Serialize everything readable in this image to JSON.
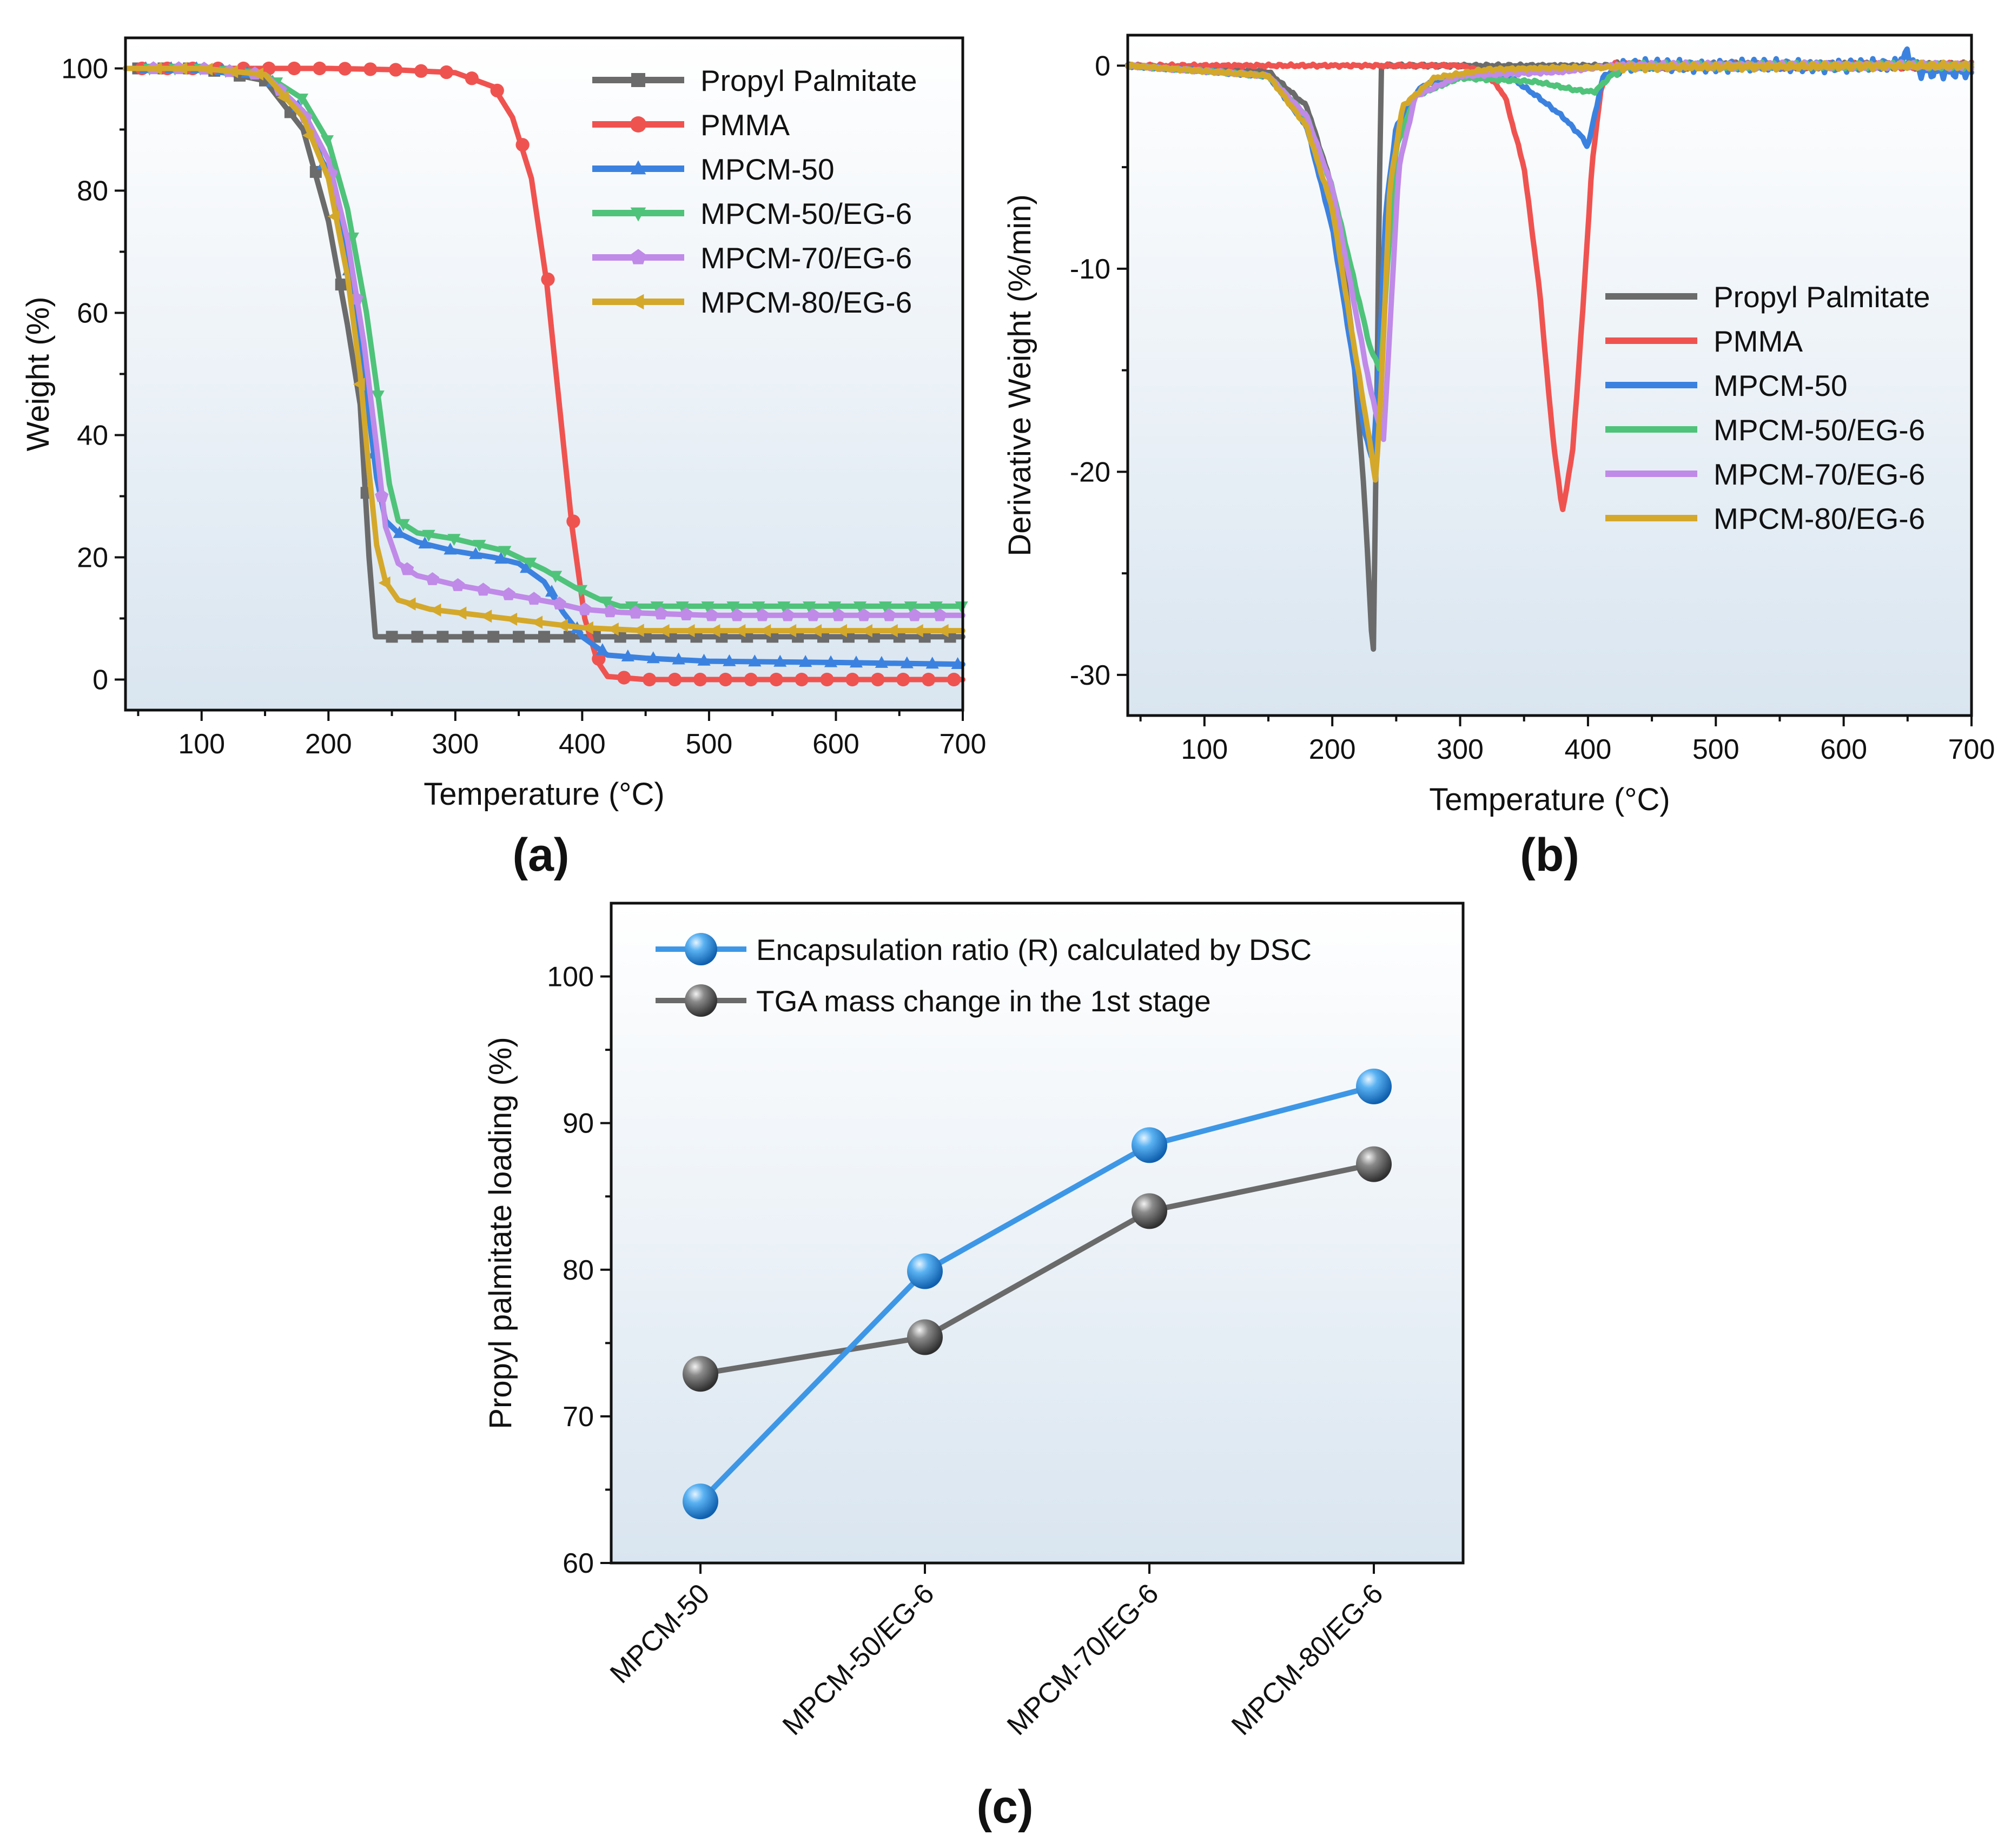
{
  "colors": {
    "propyl_palmitate": "#6b6b6b",
    "pmma": "#ef5350",
    "mpcm50": "#3b82e0",
    "mpcm50eg6": "#4fc37a",
    "mpcm70eg6": "#c08ae8",
    "mpcm80eg6": "#d4a82a",
    "dsc": "#3d97e6",
    "tga": "#6a6a6a"
  },
  "chart_data": [
    {
      "panel": "(a)",
      "type": "line",
      "xlabel": "Temperature (°C)",
      "ylabel": "Weight (%)",
      "xlim": [
        40,
        700
      ],
      "ylim": [
        -5,
        105
      ],
      "xticks": [
        100,
        200,
        300,
        400,
        500,
        600,
        700
      ],
      "yticks": [
        0,
        20,
        40,
        60,
        80,
        100
      ],
      "legend_position": "top-right",
      "series": [
        {
          "name": "Propyl Palmitate",
          "marker": "square",
          "color_key": "propyl_palmitate",
          "points": [
            [
              40,
              100
            ],
            [
              100,
              100
            ],
            [
              150,
              98
            ],
            [
              180,
              90
            ],
            [
              200,
              75
            ],
            [
              215,
              58
            ],
            [
              225,
              45
            ],
            [
              232,
              20
            ],
            [
              237,
              7
            ],
            [
              250,
              7
            ],
            [
              300,
              7
            ],
            [
              400,
              7
            ],
            [
              500,
              7
            ],
            [
              600,
              7
            ],
            [
              700,
              7
            ]
          ]
        },
        {
          "name": "PMMA",
          "marker": "circle",
          "color_key": "pmma",
          "points": [
            [
              40,
              100
            ],
            [
              100,
              100
            ],
            [
              200,
              100
            ],
            [
              250,
              99.8
            ],
            [
              300,
              99.3
            ],
            [
              330,
              97
            ],
            [
              345,
              92
            ],
            [
              360,
              82
            ],
            [
              372,
              65
            ],
            [
              382,
              45
            ],
            [
              392,
              25
            ],
            [
              402,
              10
            ],
            [
              412,
              3
            ],
            [
              420,
              0.5
            ],
            [
              450,
              0
            ],
            [
              500,
              0
            ],
            [
              600,
              0
            ],
            [
              700,
              0
            ]
          ]
        },
        {
          "name": "MPCM-50",
          "marker": "triangle-up",
          "color_key": "mpcm50",
          "points": [
            [
              40,
              100
            ],
            [
              100,
              100
            ],
            [
              150,
              99
            ],
            [
              180,
              93
            ],
            [
              200,
              82
            ],
            [
              215,
              68
            ],
            [
              228,
              50
            ],
            [
              238,
              33
            ],
            [
              245,
              26
            ],
            [
              255,
              24
            ],
            [
              270,
              22.5
            ],
            [
              300,
              21
            ],
            [
              330,
              20
            ],
            [
              350,
              19
            ],
            [
              370,
              16
            ],
            [
              385,
              11
            ],
            [
              400,
              7
            ],
            [
              420,
              4
            ],
            [
              450,
              3.5
            ],
            [
              500,
              3
            ],
            [
              600,
              2.8
            ],
            [
              700,
              2.5
            ]
          ]
        },
        {
          "name": "MPCM-50/EG-6",
          "marker": "triangle-down",
          "color_key": "mpcm50eg6",
          "points": [
            [
              40,
              100
            ],
            [
              100,
              100
            ],
            [
              150,
              99
            ],
            [
              180,
              95
            ],
            [
              200,
              88
            ],
            [
              215,
              77
            ],
            [
              230,
              60
            ],
            [
              240,
              45
            ],
            [
              248,
              32
            ],
            [
              255,
              26
            ],
            [
              270,
              24
            ],
            [
              300,
              23
            ],
            [
              340,
              21
            ],
            [
              370,
              18
            ],
            [
              395,
              15
            ],
            [
              415,
              13
            ],
            [
              430,
              12
            ],
            [
              450,
              12
            ],
            [
              500,
              12
            ],
            [
              600,
              12
            ],
            [
              700,
              12
            ]
          ]
        },
        {
          "name": "MPCM-70/EG-6",
          "marker": "pentagon",
          "color_key": "mpcm70eg6",
          "points": [
            [
              40,
              100
            ],
            [
              100,
              100
            ],
            [
              150,
              99
            ],
            [
              180,
              93
            ],
            [
              200,
              85
            ],
            [
              215,
              72
            ],
            [
              228,
              55
            ],
            [
              238,
              38
            ],
            [
              245,
              25
            ],
            [
              255,
              19
            ],
            [
              270,
              17
            ],
            [
              300,
              15.5
            ],
            [
              340,
              14
            ],
            [
              380,
              12.5
            ],
            [
              400,
              11.5
            ],
            [
              430,
              11
            ],
            [
              500,
              10.5
            ],
            [
              600,
              10.5
            ],
            [
              700,
              10.5
            ]
          ]
        },
        {
          "name": "MPCM-80/EG-6",
          "marker": "triangle-left",
          "color_key": "mpcm80eg6",
          "points": [
            [
              40,
              100
            ],
            [
              100,
              100
            ],
            [
              150,
              99
            ],
            [
              180,
              92
            ],
            [
              200,
              82
            ],
            [
              215,
              66
            ],
            [
              225,
              50
            ],
            [
              232,
              34
            ],
            [
              238,
              22
            ],
            [
              245,
              16
            ],
            [
              255,
              13
            ],
            [
              280,
              11.5
            ],
            [
              320,
              10.5
            ],
            [
              360,
              9.5
            ],
            [
              400,
              8.5
            ],
            [
              450,
              8
            ],
            [
              500,
              8
            ],
            [
              600,
              8
            ],
            [
              700,
              8
            ]
          ]
        }
      ]
    },
    {
      "panel": "(b)",
      "type": "line",
      "xlabel": "Temperature (°C)",
      "ylabel": "Derivative Weight (%/min)",
      "xlim": [
        40,
        700
      ],
      "ylim": [
        -32,
        1.5
      ],
      "xticks": [
        100,
        200,
        300,
        400,
        500,
        600,
        700
      ],
      "yticks": [
        0,
        -10,
        -20,
        -30
      ],
      "legend_position": "center-right",
      "series": [
        {
          "name": "Propyl Palmitate",
          "color_key": "propyl_palmitate",
          "points": [
            [
              40,
              0
            ],
            [
              150,
              -0.3
            ],
            [
              180,
              -2
            ],
            [
              200,
              -6
            ],
            [
              215,
              -13
            ],
            [
              225,
              -21
            ],
            [
              232,
              -29.5
            ],
            [
              235,
              -16
            ],
            [
              238,
              0
            ],
            [
              300,
              0
            ],
            [
              700,
              0
            ]
          ]
        },
        {
          "name": "PMMA",
          "color_key": "pmma",
          "points": [
            [
              40,
              0
            ],
            [
              300,
              0
            ],
            [
              320,
              -0.3
            ],
            [
              335,
              -1.5
            ],
            [
              350,
              -5
            ],
            [
              362,
              -11
            ],
            [
              372,
              -18
            ],
            [
              380,
              -22
            ],
            [
              388,
              -19
            ],
            [
              396,
              -12
            ],
            [
              403,
              -5
            ],
            [
              410,
              -1.2
            ],
            [
              420,
              0
            ],
            [
              700,
              0
            ]
          ]
        },
        {
          "name": "MPCM-50",
          "color_key": "mpcm50",
          "points": [
            [
              40,
              0
            ],
            [
              150,
              -0.5
            ],
            [
              180,
              -3
            ],
            [
              200,
              -8
            ],
            [
              215,
              -14
            ],
            [
              225,
              -18
            ],
            [
              232,
              -19.5
            ],
            [
              237,
              -14
            ],
            [
              242,
              -7
            ],
            [
              250,
              -3
            ],
            [
              270,
              -1
            ],
            [
              300,
              -0.5
            ],
            [
              340,
              -0.6
            ],
            [
              360,
              -1.5
            ],
            [
              380,
              -2.5
            ],
            [
              395,
              -3.5
            ],
            [
              400,
              -4
            ],
            [
              405,
              -2.5
            ],
            [
              412,
              -0.5
            ],
            [
              430,
              0
            ],
            [
              640,
              0
            ],
            [
              650,
              0.6
            ],
            [
              660,
              -0.3
            ],
            [
              700,
              -0.3
            ]
          ]
        },
        {
          "name": "MPCM-50/EG-6",
          "color_key": "mpcm50eg6",
          "points": [
            [
              40,
              0
            ],
            [
              150,
              -0.5
            ],
            [
              180,
              -2.5
            ],
            [
              200,
              -6
            ],
            [
              215,
              -10
            ],
            [
              230,
              -14
            ],
            [
              238,
              -15
            ],
            [
              243,
              -10
            ],
            [
              250,
              -4
            ],
            [
              265,
              -1.5
            ],
            [
              300,
              -0.6
            ],
            [
              360,
              -0.8
            ],
            [
              390,
              -1.2
            ],
            [
              405,
              -1.3
            ],
            [
              418,
              -0.5
            ],
            [
              430,
              0
            ],
            [
              700,
              0
            ]
          ]
        },
        {
          "name": "MPCM-70/EG-6",
          "color_key": "mpcm70eg6",
          "points": [
            [
              40,
              0
            ],
            [
              150,
              -0.5
            ],
            [
              180,
              -2.5
            ],
            [
              200,
              -6
            ],
            [
              215,
              -11
            ],
            [
              230,
              -16
            ],
            [
              240,
              -18.5
            ],
            [
              245,
              -13
            ],
            [
              252,
              -5
            ],
            [
              265,
              -1.5
            ],
            [
              300,
              -0.5
            ],
            [
              380,
              -0.3
            ],
            [
              420,
              0
            ],
            [
              700,
              0
            ]
          ]
        },
        {
          "name": "MPCM-80/EG-6",
          "color_key": "mpcm80eg6",
          "points": [
            [
              40,
              0
            ],
            [
              150,
              -0.5
            ],
            [
              180,
              -3
            ],
            [
              200,
              -7
            ],
            [
              215,
              -13
            ],
            [
              228,
              -18
            ],
            [
              234,
              -20.5
            ],
            [
              239,
              -15
            ],
            [
              245,
              -6
            ],
            [
              255,
              -2
            ],
            [
              280,
              -0.6
            ],
            [
              320,
              -0.2
            ],
            [
              380,
              -0.1
            ],
            [
              700,
              0
            ]
          ]
        }
      ]
    },
    {
      "panel": "(c)",
      "type": "line",
      "xlabel": "",
      "ylabel": "Propyl palmitate loading (%)",
      "ylim": [
        60,
        105
      ],
      "yticks": [
        60,
        70,
        80,
        90,
        100
      ],
      "categories": [
        "MPCM-50",
        "MPCM-50/EG-6",
        "MPCM-70/EG-6",
        "MPCM-80/EG-6"
      ],
      "legend_position": "top-left",
      "series": [
        {
          "name": "Encapsulation ratio (R) calculated by DSC",
          "color_key": "dsc",
          "values": [
            64.2,
            79.9,
            88.5,
            92.5
          ]
        },
        {
          "name": "TGA mass change in the 1st stage",
          "color_key": "tga",
          "values": [
            72.9,
            75.4,
            84.0,
            87.2
          ]
        }
      ]
    }
  ]
}
